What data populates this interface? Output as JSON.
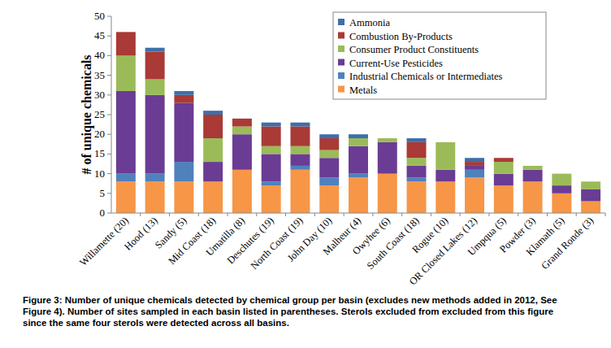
{
  "chart_data": {
    "type": "bar",
    "stacked": true,
    "y_label": "# of unique chemicals",
    "caption": "Figure 3: Number of unique chemicals detected by chemical group per basin (excludes new methods added in 2012, See Figure 4). Number of sites sampled in each basin listed in parentheses. Sterols excluded from excluded from this figure since the same four sterols were detected across all basins.",
    "categories": [
      "Willamette (20)",
      "Hood (13)",
      "Sandy (5)",
      "Mid Coast (18)",
      "Umatilla (8)",
      "Deschutes (19)",
      "North Coast (19)",
      "John Day (10)",
      "Malheur (4)",
      "Owyhee (6)",
      "South Coast (18)",
      "Rogue (10)",
      "OR Closed Lakes (12)",
      "Umpqua (5)",
      "Powder (3)",
      "Klamath (5)",
      "Grand Ronde (3)"
    ],
    "series": [
      {
        "name": "Metals",
        "color": "#f79646",
        "values": [
          8,
          8,
          8,
          8,
          11,
          7,
          11,
          7,
          9,
          10,
          8,
          8,
          9,
          7,
          8,
          5,
          3
        ]
      },
      {
        "name": "Industrial Chemicals or Intermediates",
        "color": "#4f81bd",
        "values": [
          2,
          2,
          5,
          0,
          0,
          1,
          1,
          2,
          1,
          0,
          1,
          0,
          2,
          0,
          0,
          0,
          0
        ]
      },
      {
        "name": "Current-Use Pesticides",
        "color": "#6b3c93",
        "values": [
          21,
          20,
          15,
          5,
          9,
          7,
          3,
          5,
          7,
          8,
          3,
          3,
          1,
          3,
          3,
          2,
          3
        ]
      },
      {
        "name": "Consumer Product Constituents",
        "color": "#9bbb59",
        "values": [
          9,
          4,
          0,
          6,
          2,
          2,
          2,
          2,
          2,
          1,
          2,
          7,
          0,
          3,
          1,
          3,
          2
        ]
      },
      {
        "name": "Combustion By-Products",
        "color": "#a93a36",
        "values": [
          6,
          7,
          2,
          6,
          2,
          5,
          5,
          3,
          0,
          0,
          4,
          0,
          1,
          1,
          0,
          0,
          0
        ]
      },
      {
        "name": "Ammonia",
        "color": "#3f6ea8",
        "values": [
          0,
          1,
          1,
          1,
          0,
          1,
          1,
          1,
          1,
          0,
          1,
          0,
          1,
          0,
          0,
          0,
          0
        ]
      }
    ],
    "ylim": [
      0,
      50
    ],
    "yticks": [
      0,
      5,
      10,
      15,
      20,
      25,
      30,
      35,
      40,
      45,
      50
    ],
    "grid": false,
    "legend": "top-right"
  }
}
